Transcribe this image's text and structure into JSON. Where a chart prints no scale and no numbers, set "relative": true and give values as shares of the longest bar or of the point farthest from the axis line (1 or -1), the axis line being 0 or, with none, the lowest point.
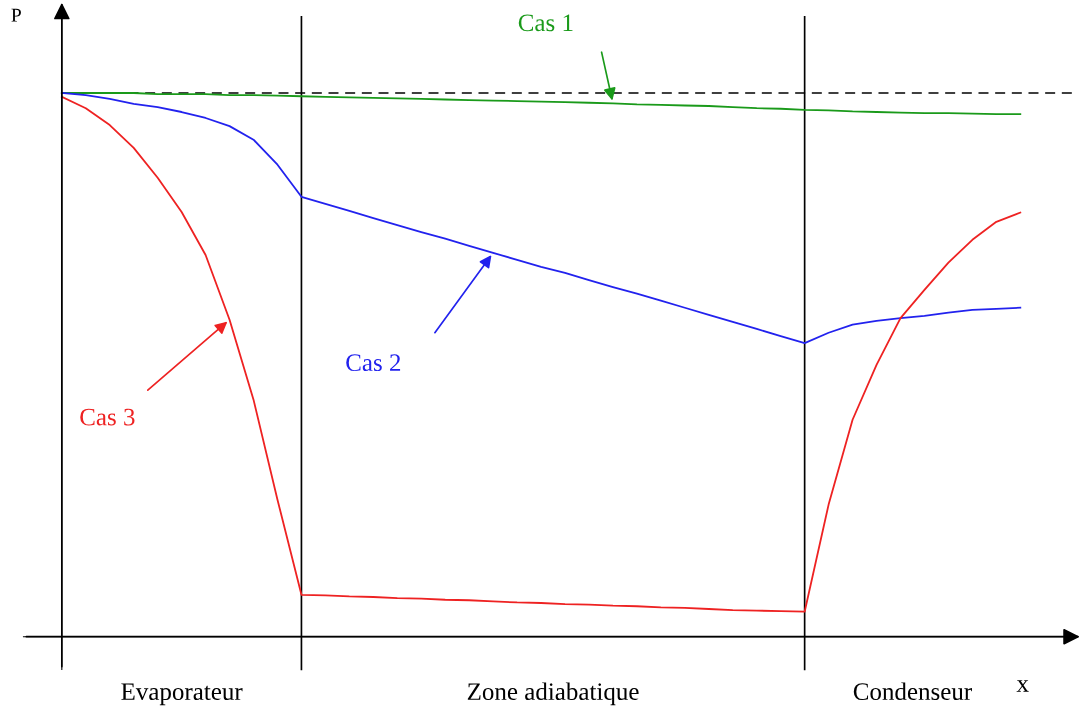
{
  "chart_data": {
    "type": "line",
    "relative": true,
    "xlabel": "x",
    "ylabel": "P",
    "categories": [
      null,
      null,
      null,
      null,
      null,
      null,
      null,
      null,
      null,
      null,
      null,
      null,
      null,
      null,
      null,
      null,
      null,
      null,
      null,
      null,
      null,
      null,
      null,
      null,
      null,
      null,
      null,
      null,
      null,
      null,
      null,
      null,
      null,
      null,
      null,
      null,
      null,
      null,
      null,
      null,
      null
    ],
    "series": [
      {
        "name": "Cas 1",
        "color": "#1a9a1a",
        "values": [
          1.0,
          1.0,
          1.0,
          1.0,
          0.998,
          0.998,
          0.998,
          0.996,
          0.996,
          0.995,
          0.994,
          0.993,
          0.992,
          0.991,
          0.99,
          0.989,
          0.988,
          0.987,
          0.986,
          0.985,
          0.984,
          0.983,
          0.982,
          0.981,
          0.979,
          0.978,
          0.977,
          0.976,
          0.974,
          0.972,
          0.971,
          0.969,
          0.968,
          0.966,
          0.965,
          0.964,
          0.963,
          0.963,
          0.962,
          0.961,
          0.961
        ]
      },
      {
        "name": "Cas 2",
        "color": "#2222ee",
        "values": [
          1.0,
          0.996,
          0.989,
          0.98,
          0.974,
          0.965,
          0.954,
          0.939,
          0.914,
          0.868,
          0.809,
          0.796,
          0.783,
          0.77,
          0.757,
          0.744,
          0.732,
          0.719,
          0.706,
          0.693,
          0.68,
          0.669,
          0.656,
          0.643,
          0.631,
          0.618,
          0.605,
          0.592,
          0.579,
          0.566,
          0.553,
          0.54,
          0.559,
          0.574,
          0.581,
          0.586,
          0.59,
          0.596,
          0.601,
          0.603,
          0.605
        ]
      },
      {
        "name": "Cas 3",
        "color": "#ee2222",
        "values": [
          0.993,
          0.972,
          0.941,
          0.899,
          0.844,
          0.781,
          0.702,
          0.583,
          0.436,
          0.252,
          0.077,
          0.076,
          0.074,
          0.073,
          0.071,
          0.07,
          0.068,
          0.067,
          0.065,
          0.063,
          0.062,
          0.06,
          0.059,
          0.057,
          0.056,
          0.054,
          0.053,
          0.051,
          0.049,
          0.048,
          0.047,
          0.046,
          0.243,
          0.399,
          0.5,
          0.586,
          0.638,
          0.688,
          0.73,
          0.763,
          0.78
        ]
      }
    ],
    "ref_lines": [
      {
        "axis": "y",
        "value": 1.0,
        "color": "#000000",
        "line_style": "dashed"
      }
    ],
    "annotations": [
      "Evaporateur",
      "Zone adiabatique",
      "Condenseur"
    ],
    "legend": false,
    "marker": "none",
    "line_style": "solid"
  }
}
